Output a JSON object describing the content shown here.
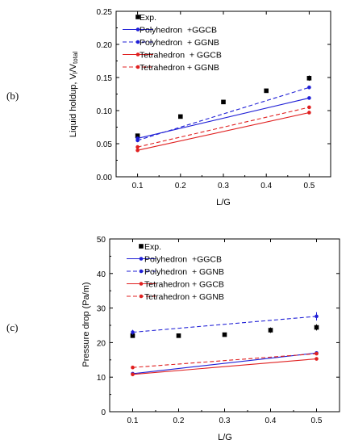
{
  "chart_data": [
    {
      "type": "line",
      "panel_label": "(b)",
      "xlabel": "L/G",
      "ylabel_main": "Liquid holdup, V",
      "ylabel_sub1": "l",
      "ylabel_mid": "/V",
      "ylabel_sub2": "total",
      "xlim": [
        0.05,
        0.55
      ],
      "ylim": [
        0.0,
        0.25
      ],
      "xticks": [
        "0.1",
        "0.2",
        "0.3",
        "0.4",
        "0.5"
      ],
      "yticks": [
        "0.00",
        "0.05",
        "0.10",
        "0.15",
        "0.20",
        "0.25"
      ],
      "xtick_values": [
        0.1,
        0.2,
        0.3,
        0.4,
        0.5
      ],
      "ytick_values": [
        0.0,
        0.05,
        0.1,
        0.15,
        0.2,
        0.25
      ],
      "legend_position": "top-left",
      "grid": false,
      "series": [
        {
          "name": "Exp.",
          "kind": "markers",
          "color": "#000000",
          "marker": "square",
          "x": [
            0.1,
            0.2,
            0.3,
            0.4,
            0.5
          ],
          "y": [
            0.062,
            0.091,
            0.113,
            0.13,
            0.149
          ],
          "err": [
            0.003,
            0.002,
            0.002,
            0.003,
            0.004
          ]
        },
        {
          "name": "Polyhedron  +GGCB",
          "kind": "line",
          "color": "#1f1fd6",
          "dash": "solid",
          "x": [
            0.1,
            0.5
          ],
          "y": [
            0.058,
            0.119
          ]
        },
        {
          "name": "Polyhedron  + GGNB",
          "kind": "line",
          "color": "#1f1fd6",
          "dash": "dashed",
          "x": [
            0.1,
            0.5
          ],
          "y": [
            0.055,
            0.135
          ]
        },
        {
          "name": "Tetrahedron  + GGCB",
          "kind": "line",
          "color": "#e02020",
          "dash": "solid",
          "x": [
            0.1,
            0.5
          ],
          "y": [
            0.04,
            0.097
          ]
        },
        {
          "name": "Tetrahedron + GGNB",
          "kind": "line",
          "color": "#e02020",
          "dash": "dashed",
          "x": [
            0.1,
            0.5
          ],
          "y": [
            0.045,
            0.105
          ]
        }
      ]
    },
    {
      "type": "line",
      "panel_label": "(c)",
      "xlabel": "L/G",
      "ylabel": "Pressure drop (Pa/m)",
      "xlim": [
        0.05,
        0.55
      ],
      "ylim": [
        0,
        50
      ],
      "xticks": [
        "0.1",
        "0.2",
        "0.3",
        "0.4",
        "0.5"
      ],
      "yticks": [
        "0",
        "10",
        "20",
        "30",
        "40",
        "50"
      ],
      "xtick_values": [
        0.1,
        0.2,
        0.3,
        0.4,
        0.5
      ],
      "ytick_values": [
        0,
        10,
        20,
        30,
        40,
        50
      ],
      "legend_position": "top-left",
      "grid": false,
      "series": [
        {
          "name": "Exp.",
          "kind": "markers",
          "color": "#000000",
          "marker": "square",
          "x": [
            0.1,
            0.2,
            0.3,
            0.4,
            0.5
          ],
          "y": [
            22.0,
            22.0,
            22.3,
            23.6,
            24.4
          ],
          "err": [
            0.6,
            0.5,
            0.4,
            0.8,
            0.9
          ]
        },
        {
          "name": "Polyhedron  +GGCB",
          "kind": "line",
          "color": "#1f1fd6",
          "dash": "solid",
          "x": [
            0.1,
            0.5
          ],
          "y": [
            11.0,
            17.0
          ]
        },
        {
          "name": "Polyhedron  + GGNB",
          "kind": "line",
          "color": "#1f1fd6",
          "dash": "dashed",
          "x": [
            0.1,
            0.5
          ],
          "y": [
            23.0,
            27.6
          ],
          "err": [
            0.7,
            1.2
          ]
        },
        {
          "name": "Tetrahedron + GGCB",
          "kind": "line",
          "color": "#e02020",
          "dash": "solid",
          "x": [
            0.1,
            0.5
          ],
          "y": [
            10.8,
            15.3
          ]
        },
        {
          "name": "Tetrahedron + GGNB",
          "kind": "line",
          "color": "#e02020",
          "dash": "dashed",
          "x": [
            0.1,
            0.5
          ],
          "y": [
            12.8,
            16.8
          ]
        }
      ]
    }
  ]
}
